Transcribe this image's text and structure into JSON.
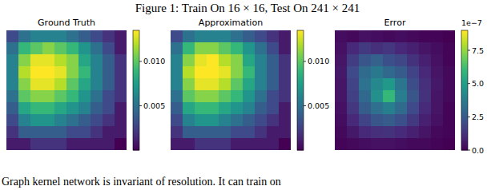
{
  "figure_title": "Figure 1: Train On 16 × 16, Test On 241 × 241",
  "caption": "Graph kernel network is invariant of resolution. It can train on",
  "chart_data": [
    {
      "type": "heatmap",
      "title": "Ground Truth",
      "tick_labels": false,
      "cells": [
        [
          0.003,
          0.005,
          0.006,
          0.006,
          0.006,
          0.005,
          0.004,
          0.003,
          0.002,
          0.001
        ],
        [
          0.005,
          0.009,
          0.01,
          0.011,
          0.01,
          0.009,
          0.007,
          0.005,
          0.003,
          0.001
        ],
        [
          0.006,
          0.011,
          0.013,
          0.013,
          0.012,
          0.011,
          0.008,
          0.006,
          0.004,
          0.002
        ],
        [
          0.006,
          0.012,
          0.0135,
          0.0135,
          0.013,
          0.011,
          0.009,
          0.006,
          0.004,
          0.002
        ],
        [
          0.006,
          0.011,
          0.013,
          0.013,
          0.012,
          0.01,
          0.008,
          0.006,
          0.004,
          0.002
        ],
        [
          0.005,
          0.01,
          0.011,
          0.011,
          0.01,
          0.009,
          0.007,
          0.005,
          0.003,
          0.002
        ],
        [
          0.004,
          0.008,
          0.009,
          0.009,
          0.008,
          0.007,
          0.006,
          0.004,
          0.003,
          0.001
        ],
        [
          0.003,
          0.006,
          0.007,
          0.007,
          0.006,
          0.005,
          0.004,
          0.003,
          0.002,
          0.001
        ],
        [
          0.002,
          0.004,
          0.004,
          0.004,
          0.004,
          0.003,
          0.003,
          0.002,
          0.001,
          0.001
        ],
        [
          0.001,
          0.001,
          0.002,
          0.002,
          0.002,
          0.001,
          0.001,
          0.001,
          0.001,
          0.0
        ]
      ],
      "color_range": [
        0,
        0.0135
      ],
      "color_ticks": [
        {
          "value": 0.005,
          "label": "0.005"
        },
        {
          "value": 0.01,
          "label": "0.010"
        }
      ]
    },
    {
      "type": "heatmap",
      "title": "Approximation",
      "tick_labels": false,
      "cells": [
        [
          0.003,
          0.005,
          0.006,
          0.006,
          0.006,
          0.005,
          0.004,
          0.003,
          0.002,
          0.001
        ],
        [
          0.005,
          0.009,
          0.011,
          0.011,
          0.01,
          0.009,
          0.007,
          0.005,
          0.003,
          0.001
        ],
        [
          0.006,
          0.011,
          0.013,
          0.0135,
          0.012,
          0.011,
          0.008,
          0.006,
          0.004,
          0.002
        ],
        [
          0.006,
          0.012,
          0.0135,
          0.0135,
          0.013,
          0.011,
          0.009,
          0.006,
          0.004,
          0.002
        ],
        [
          0.006,
          0.011,
          0.013,
          0.013,
          0.012,
          0.01,
          0.008,
          0.006,
          0.004,
          0.002
        ],
        [
          0.005,
          0.01,
          0.011,
          0.011,
          0.01,
          0.009,
          0.007,
          0.005,
          0.003,
          0.002
        ],
        [
          0.004,
          0.008,
          0.009,
          0.009,
          0.008,
          0.007,
          0.006,
          0.004,
          0.003,
          0.001
        ],
        [
          0.003,
          0.006,
          0.007,
          0.007,
          0.006,
          0.005,
          0.004,
          0.003,
          0.002,
          0.001
        ],
        [
          0.002,
          0.004,
          0.004,
          0.004,
          0.004,
          0.003,
          0.003,
          0.002,
          0.001,
          0.001
        ],
        [
          0.001,
          0.001,
          0.002,
          0.002,
          0.002,
          0.001,
          0.001,
          0.001,
          0.001,
          0.0
        ]
      ],
      "color_range": [
        0,
        0.0135
      ],
      "color_ticks": [
        {
          "value": 0.005,
          "label": "0.005"
        },
        {
          "value": 0.01,
          "label": "0.010"
        }
      ]
    },
    {
      "type": "heatmap",
      "title": "Error",
      "tick_labels": false,
      "cells": [
        [
          0.3,
          0.2,
          0.4,
          0.3,
          0.2,
          0.3,
          0.2,
          0.1,
          0.1,
          0.0
        ],
        [
          0.4,
          1.0,
          1.5,
          1.2,
          1.4,
          1.0,
          0.8,
          0.5,
          0.3,
          0.1
        ],
        [
          0.5,
          1.6,
          2.4,
          2.8,
          2.2,
          1.9,
          1.3,
          0.8,
          0.4,
          0.1
        ],
        [
          0.6,
          2.0,
          3.1,
          3.6,
          3.0,
          2.6,
          1.8,
          1.0,
          0.5,
          0.2
        ],
        [
          0.5,
          1.8,
          3.4,
          4.2,
          4.8,
          3.5,
          2.1,
          1.2,
          0.6,
          0.2
        ],
        [
          0.5,
          1.7,
          3.0,
          4.5,
          6.0,
          3.8,
          2.4,
          1.3,
          0.5,
          0.2
        ],
        [
          0.4,
          1.4,
          2.6,
          3.3,
          3.9,
          3.1,
          2.0,
          1.1,
          0.5,
          0.1
        ],
        [
          0.3,
          1.0,
          1.8,
          2.4,
          2.6,
          2.2,
          1.5,
          0.8,
          0.4,
          0.1
        ],
        [
          0.2,
          0.6,
          1.0,
          1.2,
          1.3,
          1.1,
          0.8,
          0.5,
          0.2,
          0.1
        ],
        [
          0.1,
          0.2,
          0.3,
          0.4,
          0.4,
          0.3,
          0.2,
          0.2,
          0.1,
          0.0
        ]
      ],
      "color_range": [
        0,
        9
      ],
      "color_offset_label": "1e−7",
      "color_ticks": [
        {
          "value": 0,
          "label": "0.0"
        },
        {
          "value": 2.5,
          "label": "2.5"
        },
        {
          "value": 5,
          "label": "5.0"
        },
        {
          "value": 7.5,
          "label": "7.5"
        }
      ]
    }
  ]
}
